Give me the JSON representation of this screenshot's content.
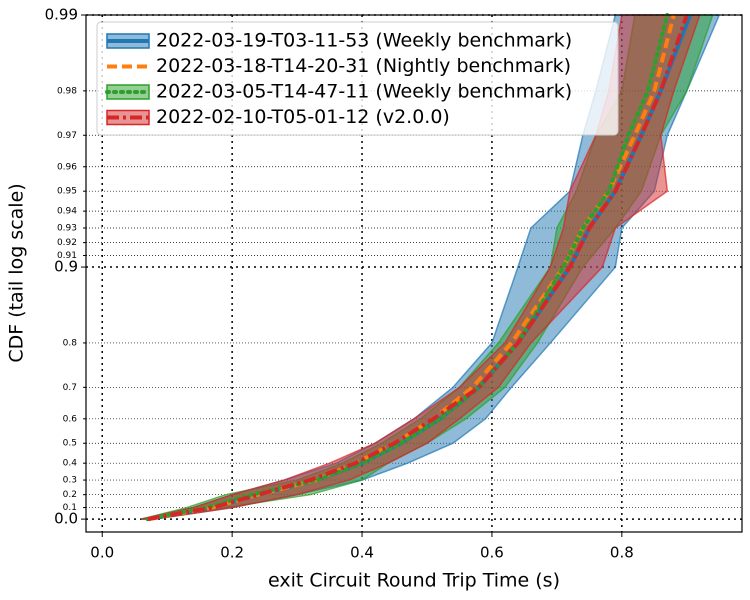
{
  "chart_data": {
    "type": "line",
    "x_label": "exit Circuit Round Trip Time (s)",
    "y_label": "CDF (tail log scale)",
    "y_scale": "tail-log",
    "xlim": [
      -0.025,
      0.985
    ],
    "ylim": [
      -0.125,
      0.99
    ],
    "xticks": [
      {
        "value": 0,
        "label": "0.0"
      },
      0.2,
      0.4,
      0.6,
      0.8
    ],
    "yticks": [
      {
        "value": 0,
        "label": "0.0"
      },
      0.9,
      0.99
    ],
    "yticks_minor": [
      0.1,
      0.2,
      0.3,
      0.4,
      0.5,
      0.6,
      0.7,
      0.8,
      0.91,
      0.92,
      0.93,
      0.94,
      0.95,
      0.96,
      0.97,
      0.98
    ],
    "grid": true,
    "legend": "upper left",
    "y": [
      0,
      0.1,
      0.2,
      0.3,
      0.4,
      0.5,
      0.6,
      0.7,
      0.8,
      0.9,
      0.93,
      0.95,
      0.97,
      0.98,
      0.99
    ],
    "series": [
      {
        "name": "2022-03-19-T03-11-53 (Weekly benchmark)",
        "color": "#1f77b4",
        "style": "solid",
        "values": [
          0.07,
          0.17,
          0.24,
          0.33,
          0.4,
          0.46,
          0.52,
          0.58,
          0.64,
          0.72,
          0.75,
          0.79,
          0.83,
          0.86,
          0.905
        ],
        "lower": [
          0.06,
          0.14,
          0.2,
          0.28,
          0.36,
          0.42,
          0.48,
          0.54,
          0.6,
          0.64,
          0.66,
          0.72,
          0.74,
          0.76,
          0.79
        ],
        "upper": [
          0.08,
          0.2,
          0.3,
          0.4,
          0.47,
          0.54,
          0.59,
          0.63,
          0.69,
          0.79,
          0.8,
          0.85,
          0.87,
          0.9,
          0.95
        ]
      },
      {
        "name": "2022-03-18-T14-20-31 (Nightly benchmark)",
        "color": "#ff7f0e",
        "style": "dashed",
        "values": [
          0.07,
          0.17,
          0.24,
          0.33,
          0.39,
          0.45,
          0.51,
          0.57,
          0.63,
          0.71,
          0.74,
          0.78,
          0.82,
          0.85,
          0.88
        ]
      },
      {
        "name": "2022-03-05-T14-47-11 (Weekly benchmark)",
        "color": "#2ca02c",
        "style": "dotted",
        "values": [
          0.07,
          0.16,
          0.23,
          0.33,
          0.4,
          0.46,
          0.52,
          0.58,
          0.64,
          0.71,
          0.74,
          0.78,
          0.81,
          0.84,
          0.87
        ],
        "lower": [
          0.06,
          0.13,
          0.19,
          0.3,
          0.37,
          0.43,
          0.49,
          0.55,
          0.61,
          0.69,
          0.7,
          0.73,
          0.76,
          0.8,
          0.82
        ],
        "upper": [
          0.08,
          0.19,
          0.32,
          0.4,
          0.44,
          0.5,
          0.56,
          0.62,
          0.67,
          0.74,
          0.79,
          0.83,
          0.86,
          0.9,
          0.94
        ]
      },
      {
        "name": "2022-02-10-T05-01-12 (v2.0.0)",
        "color": "#d62728",
        "style": "dashdot",
        "values": [
          0.07,
          0.17,
          0.24,
          0.32,
          0.39,
          0.45,
          0.51,
          0.58,
          0.64,
          0.72,
          0.75,
          0.79,
          0.83,
          0.86,
          0.9
        ],
        "lower": [
          0.06,
          0.14,
          0.2,
          0.28,
          0.35,
          0.42,
          0.48,
          0.55,
          0.62,
          0.69,
          0.71,
          0.72,
          0.76,
          0.78,
          0.8
        ],
        "upper": [
          0.08,
          0.2,
          0.3,
          0.38,
          0.44,
          0.5,
          0.55,
          0.61,
          0.66,
          0.77,
          0.79,
          0.87,
          0.86,
          0.88,
          0.92
        ]
      }
    ]
  }
}
